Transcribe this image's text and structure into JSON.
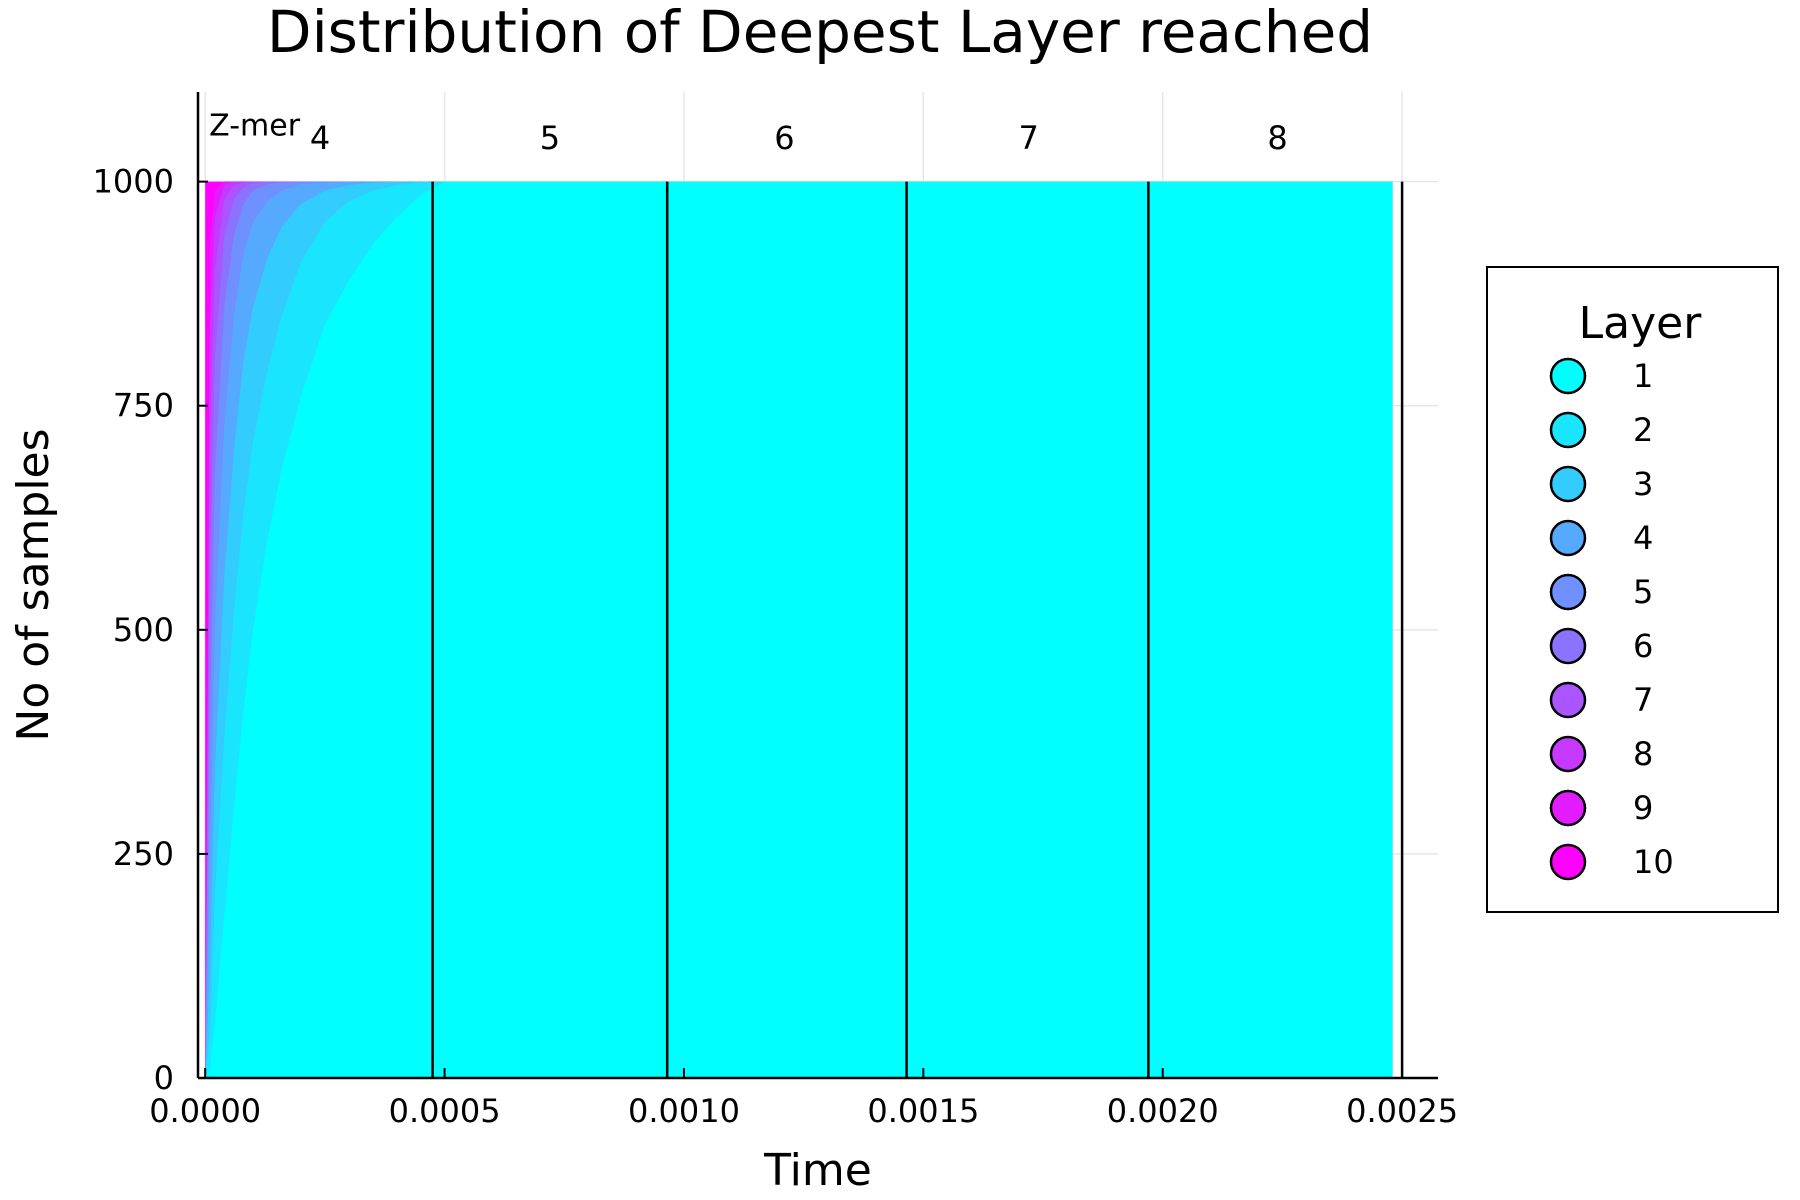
{
  "chart_data": {
    "type": "area",
    "title": "Distribution of Deepest Layer reached",
    "xlabel": "Time",
    "ylabel": "No of samples",
    "xlim": [
      -1.5e-05,
      0.002575
    ],
    "ylim": [
      0,
      1100
    ],
    "x_ticks": [
      {
        "value": 0.0,
        "label": "0.0000"
      },
      {
        "value": 0.0005,
        "label": "0.0005"
      },
      {
        "value": 0.001,
        "label": "0.0010"
      },
      {
        "value": 0.0015,
        "label": "0.0015"
      },
      {
        "value": 0.002,
        "label": "0.0020"
      },
      {
        "value": 0.0025,
        "label": "0.0025"
      }
    ],
    "y_ticks": [
      {
        "value": 0,
        "label": "0"
      },
      {
        "value": 250,
        "label": "250"
      },
      {
        "value": 500,
        "label": "500"
      },
      {
        "value": 750,
        "label": "750"
      },
      {
        "value": 1000,
        "label": "1000"
      }
    ],
    "grid": true,
    "legend": {
      "title": "Layer",
      "placement": "outside-right",
      "entries": [
        "1",
        "2",
        "3",
        "4",
        "5",
        "6",
        "7",
        "8",
        "9",
        "10"
      ]
    },
    "x": [
      0.0,
      1e-05,
      2e-05,
      4e-05,
      6e-05,
      8e-05,
      0.0001,
      0.00013,
      0.00016,
      0.0002,
      0.00025,
      0.0003,
      0.00035,
      0.0004,
      0.00045,
      0.0005,
      0.00075,
      0.001,
      0.00125,
      0.0015,
      0.00175,
      0.002,
      0.00225,
      0.00248
    ],
    "series": [
      {
        "name": "1",
        "color": "#00ffff",
        "values": [
          0,
          10,
          60,
          180,
          300,
          410,
          500,
          600,
          680,
          760,
          840,
          890,
          930,
          960,
          985,
          1000,
          1000,
          1000,
          1000,
          1000,
          1000,
          1000,
          1000,
          1000
        ]
      },
      {
        "name": "2",
        "color": "#1ae5ff",
        "values": [
          0,
          50,
          200,
          380,
          520,
          630,
          710,
          790,
          850,
          910,
          955,
          978,
          990,
          996,
          999,
          1000,
          1000,
          1000,
          1000,
          1000,
          1000,
          1000,
          1000,
          1000
        ]
      },
      {
        "name": "3",
        "color": "#33ccff",
        "values": [
          0,
          120,
          340,
          560,
          700,
          800,
          860,
          915,
          950,
          975,
          990,
          996,
          999,
          1000,
          1000,
          1000,
          1000,
          1000,
          1000,
          1000,
          1000,
          1000,
          1000,
          1000
        ]
      },
      {
        "name": "4",
        "color": "#55aaff",
        "values": [
          0,
          250,
          500,
          730,
          850,
          920,
          955,
          978,
          990,
          997,
          999,
          1000,
          1000,
          1000,
          1000,
          1000,
          1000,
          1000,
          1000,
          1000,
          1000,
          1000,
          1000,
          1000
        ]
      },
      {
        "name": "5",
        "color": "#6f90ff",
        "values": [
          0,
          400,
          670,
          860,
          940,
          975,
          990,
          997,
          999,
          1000,
          1000,
          1000,
          1000,
          1000,
          1000,
          1000,
          1000,
          1000,
          1000,
          1000,
          1000,
          1000,
          1000,
          1000
        ]
      },
      {
        "name": "6",
        "color": "#8c73ff",
        "values": [
          0,
          560,
          800,
          940,
          980,
          994,
          998,
          1000,
          1000,
          1000,
          1000,
          1000,
          1000,
          1000,
          1000,
          1000,
          1000,
          1000,
          1000,
          1000,
          1000,
          1000,
          1000,
          1000
        ]
      },
      {
        "name": "7",
        "color": "#aa55ff",
        "values": [
          0,
          710,
          900,
          980,
          996,
          999,
          1000,
          1000,
          1000,
          1000,
          1000,
          1000,
          1000,
          1000,
          1000,
          1000,
          1000,
          1000,
          1000,
          1000,
          1000,
          1000,
          1000,
          1000
        ]
      },
      {
        "name": "8",
        "color": "#c63aff",
        "values": [
          0,
          840,
          960,
          996,
          1000,
          1000,
          1000,
          1000,
          1000,
          1000,
          1000,
          1000,
          1000,
          1000,
          1000,
          1000,
          1000,
          1000,
          1000,
          1000,
          1000,
          1000,
          1000,
          1000
        ]
      },
      {
        "name": "9",
        "color": "#e31cff",
        "values": [
          0,
          930,
          990,
          1000,
          1000,
          1000,
          1000,
          1000,
          1000,
          1000,
          1000,
          1000,
          1000,
          1000,
          1000,
          1000,
          1000,
          1000,
          1000,
          1000,
          1000,
          1000,
          1000,
          1000
        ]
      },
      {
        "name": "10",
        "color": "#ff00ff",
        "values": [
          1000,
          1000,
          1000,
          1000,
          1000,
          1000,
          1000,
          1000,
          1000,
          1000,
          1000,
          1000,
          1000,
          1000,
          1000,
          1000,
          1000,
          1000,
          1000,
          1000,
          1000,
          1000,
          1000,
          1000
        ]
      }
    ],
    "vlines": [
      0.000475,
      0.000965,
      0.001465,
      0.00197,
      0.0025
    ],
    "annotations": {
      "zmer_label": {
        "text": "Z-mer",
        "x": 0.0,
        "y": 1065
      },
      "segment_labels": [
        {
          "text": "4",
          "x": 0.00024,
          "y": 1050
        },
        {
          "text": "5",
          "x": 0.00072,
          "y": 1050
        },
        {
          "text": "6",
          "x": 0.00121,
          "y": 1050
        },
        {
          "text": "7",
          "x": 0.00172,
          "y": 1050
        },
        {
          "text": "8",
          "x": 0.00224,
          "y": 1050
        }
      ]
    }
  }
}
